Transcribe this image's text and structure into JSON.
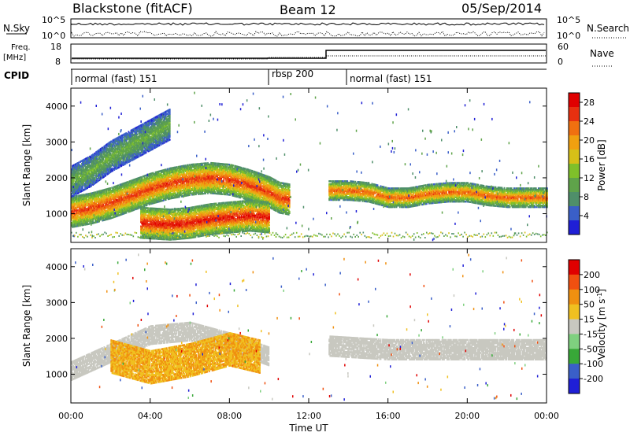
{
  "header": {
    "station": "Blackstone (fitACF)",
    "beam": "Beam 12",
    "date": "05/Sep/2014"
  },
  "strip_panels": {
    "nsky_label": "N.Sky",
    "nsky_ticks": [
      "10^5",
      "10^0"
    ],
    "nsearch_label": "N.Search",
    "nsearch_ticks": [
      "10^5",
      "10^0"
    ],
    "freq_label": "Freq.",
    "freq_unit": "[MHz]",
    "freq_ticks": [
      "18",
      "8"
    ],
    "nave_label": "Nave",
    "nave_ticks": [
      "60",
      "0"
    ],
    "cpid_label": "CPID",
    "cpid_segments": [
      {
        "label": "normal (fast) 151",
        "start_hour": 0,
        "end_hour": 10
      },
      {
        "label": "rbsp 200",
        "start_hour": 10,
        "end_hour": 13
      },
      {
        "label": "normal (fast) 151",
        "start_hour": 13,
        "end_hour": 24
      }
    ]
  },
  "colors": {
    "power_scale": [
      "#1f1fd6",
      "#3a5fc8",
      "#4f8f6a",
      "#5fa34a",
      "#7fc02a",
      "#d6c018",
      "#f0a010",
      "#f07010",
      "#e83010",
      "#e00000"
    ],
    "velocity_scale": [
      "#1f1fd6",
      "#3a5fc8",
      "#38a838",
      "#7fd07f",
      "#c8c8c0",
      "#f0c020",
      "#f09010",
      "#f05010",
      "#e00000"
    ]
  },
  "chart_data": [
    {
      "type": "heatmap",
      "title": "",
      "xlabel": "Time UT",
      "ylabel": "Slant Range [km]",
      "xlim": [
        0,
        24
      ],
      "ylim": [
        200,
        4500
      ],
      "x_ticks": [
        "00:00",
        "04:00",
        "08:00",
        "12:00",
        "16:00",
        "20:00",
        "00:00"
      ],
      "y_ticks": [
        "1000",
        "2000",
        "3000",
        "4000"
      ],
      "colorbar": {
        "label": "Power [dB]",
        "ticks": [
          "4",
          "8",
          "12",
          "16",
          "20",
          "24",
          "28"
        ],
        "range": [
          0,
          30
        ]
      },
      "scatter_bands": [
        {
          "name": "main",
          "t": [
            0,
            1,
            2,
            3,
            4,
            5,
            6,
            7,
            8,
            9,
            10,
            10.5,
            11
          ],
          "range_km": [
            1050,
            1150,
            1300,
            1500,
            1700,
            1850,
            1950,
            2000,
            1950,
            1800,
            1600,
            1450,
            1400
          ],
          "power_db": 26
        },
        {
          "name": "upper",
          "t": [
            0,
            1,
            2,
            3,
            4,
            5
          ],
          "range_km": [
            1900,
            2200,
            2600,
            2900,
            3200,
            3500
          ],
          "power_db": 12
        },
        {
          "name": "lower",
          "t": [
            3.5,
            5,
            6,
            7,
            8,
            9,
            10
          ],
          "range_km": [
            750,
            700,
            750,
            850,
            900,
            950,
            900
          ],
          "power_db": 28
        },
        {
          "name": "evening",
          "t": [
            13,
            14,
            15,
            16,
            17,
            18,
            19,
            20,
            21,
            22,
            23,
            24
          ],
          "range_km": [
            1650,
            1650,
            1600,
            1450,
            1450,
            1550,
            1600,
            1600,
            1500,
            1450,
            1450,
            1450
          ],
          "power_db": 24
        }
      ]
    },
    {
      "type": "heatmap",
      "title": "",
      "xlabel": "Time UT",
      "ylabel": "Slant Range [km]",
      "xlim": [
        0,
        24
      ],
      "ylim": [
        200,
        4500
      ],
      "x_ticks": [
        "00:00",
        "04:00",
        "08:00",
        "12:00",
        "16:00",
        "20:00",
        "00:00"
      ],
      "y_ticks": [
        "1000",
        "2000",
        "3000",
        "4000"
      ],
      "colorbar": {
        "label": "Velocity [m s",
        "label_sup": "-1",
        "label_end": "]",
        "ticks": [
          "200",
          "100",
          "50",
          "15",
          "-15",
          "-50",
          "-100",
          "-200"
        ],
        "range": [
          -250,
          250
        ]
      },
      "scatter_bands": [
        {
          "name": "ground_scatter",
          "t": [
            0,
            2,
            4,
            6,
            8,
            10
          ],
          "range_km": [
            1100,
            1600,
            2100,
            2200,
            1900,
            1500
          ],
          "velocity": 0
        },
        {
          "name": "orange_patch",
          "t": [
            2,
            4,
            6,
            8,
            9.5
          ],
          "range_km": [
            1500,
            1200,
            1400,
            1700,
            1500
          ],
          "velocity": -80
        },
        {
          "name": "evening_gs",
          "t": [
            13,
            16,
            20,
            24
          ],
          "range_km": [
            1800,
            1700,
            1700,
            1700
          ],
          "velocity": 0
        }
      ]
    }
  ]
}
